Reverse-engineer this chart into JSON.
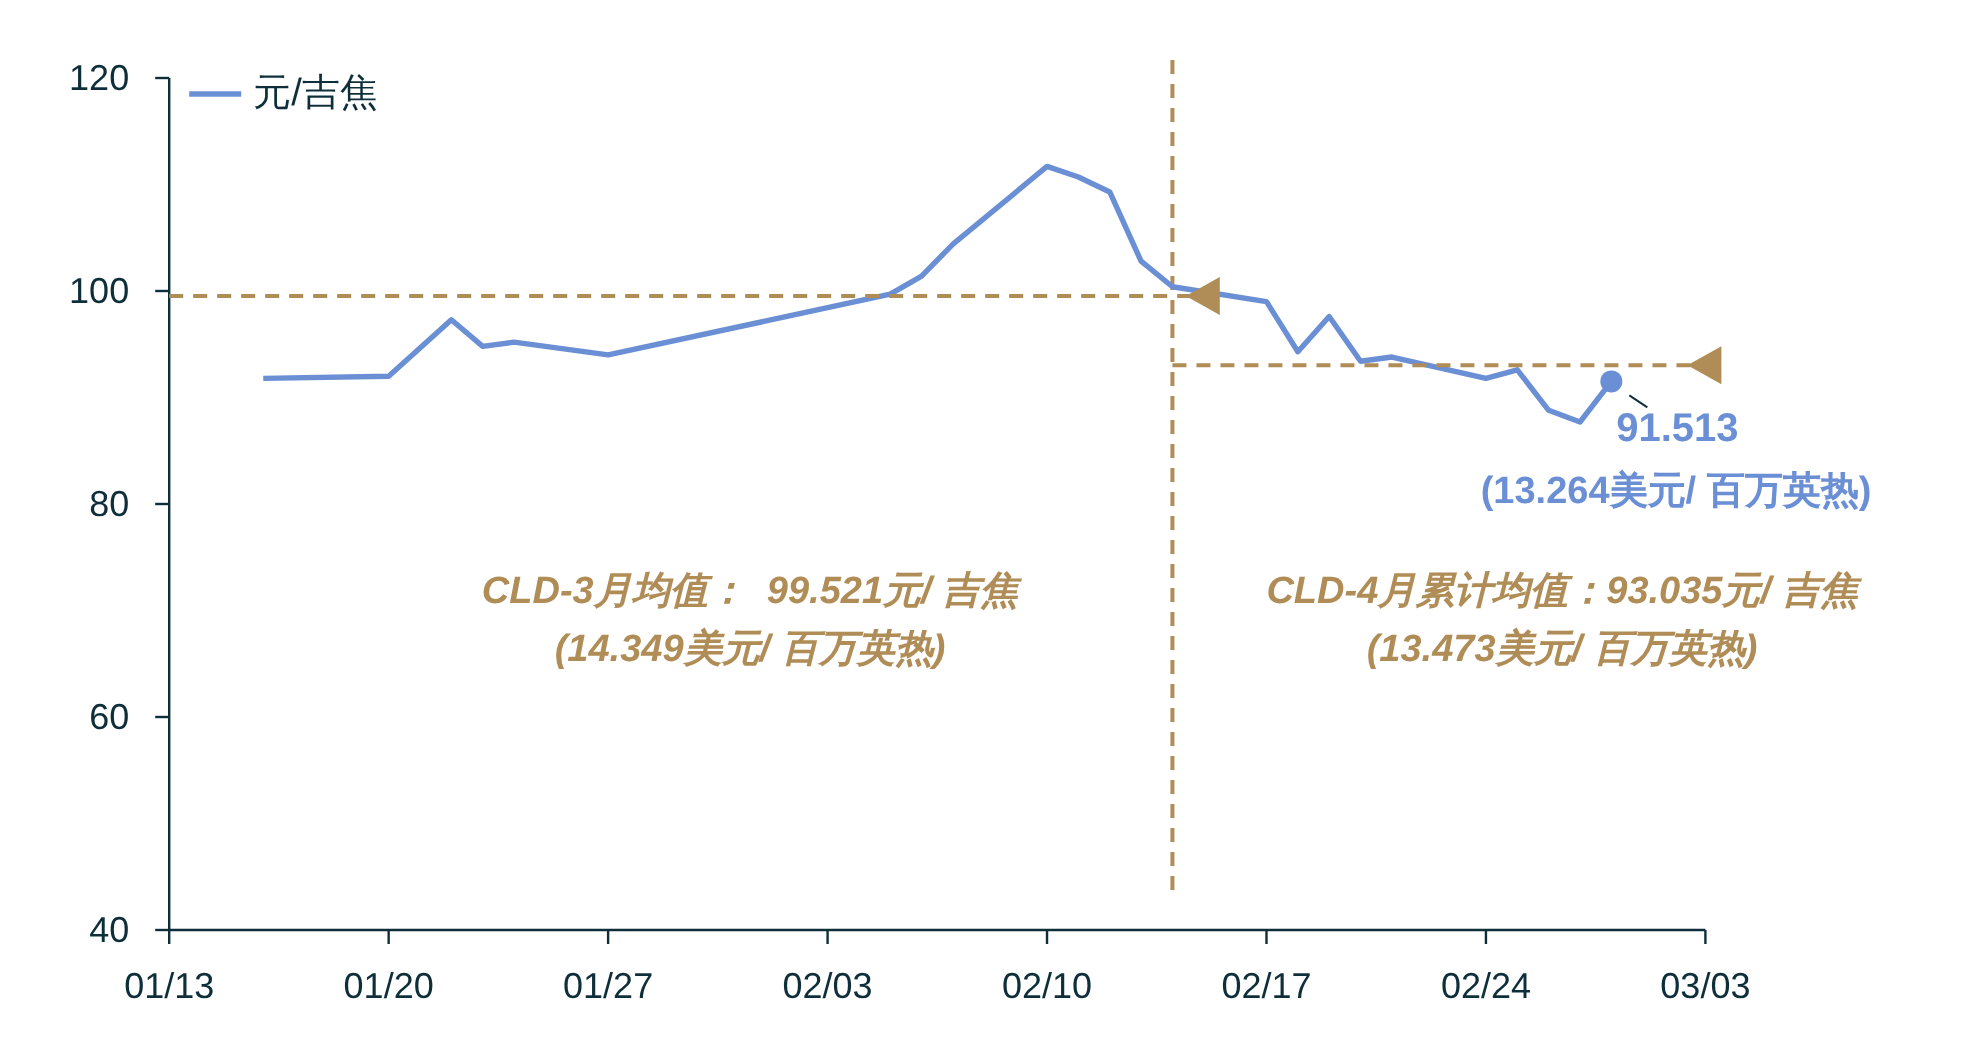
{
  "chart_data": {
    "type": "line",
    "legend": "top left",
    "xlim": [
      "--01-13",
      "--03-03"
    ],
    "xticks": [
      {
        "value": "--01-13",
        "label": "01/13"
      },
      {
        "value": "--01-20",
        "label": "01/20"
      },
      {
        "value": "--01-27",
        "label": "01/27"
      },
      {
        "value": "--02-03",
        "label": "02/03"
      },
      {
        "value": "--02-10",
        "label": "02/10"
      },
      {
        "value": "--02-17",
        "label": "02/17"
      },
      {
        "value": "--02-24",
        "label": "02/24"
      },
      {
        "value": "--03-03",
        "label": "03/03"
      }
    ],
    "ylim": [
      40,
      120
    ],
    "yticks": [
      40,
      60,
      80,
      100,
      120
    ],
    "series": [
      {
        "name": "元/吉焦",
        "color": "#6b8fd4",
        "x": [
          "--01-16",
          "--01-20",
          "--01-22",
          "--01-23",
          "--01-24",
          "--01-27",
          "--02-05",
          "--02-06",
          "--02-07",
          "--02-10",
          "--02-11",
          "--02-12",
          "--02-13",
          "--02-14",
          "--02-17",
          "--02-18",
          "--02-19",
          "--02-20",
          "--02-21",
          "--02-24",
          "--02-25",
          "--02-26",
          "--02-27",
          "--02-28"
        ],
        "values": [
          91.8,
          92.0,
          97.3,
          94.8,
          95.2,
          94.0,
          99.7,
          101.4,
          104.4,
          111.7,
          110.7,
          109.3,
          102.8,
          100.4,
          99.0,
          94.3,
          97.6,
          93.4,
          93.8,
          91.8,
          92.6,
          88.8,
          87.7,
          91.513
        ]
      },
      {
        "type": "line",
        "color": "#b08d57",
        "line_style": "dashed",
        "x": [
          "--01-13",
          "--02-15"
        ],
        "values": [
          99.521,
          99.521
        ]
      },
      {
        "type": "scatter",
        "color": "#b08d57",
        "marker": "triangle",
        "x": [
          "--02-15"
        ],
        "values": [
          99.521
        ]
      },
      {
        "type": "line",
        "color": "#b08d57",
        "line_style": "dashed",
        "x": [
          "--02-14",
          "--03-03"
        ],
        "values": [
          93.035,
          93.035
        ]
      },
      {
        "type": "scatter",
        "color": "#b08d57",
        "marker": "triangle",
        "x": [
          "--03-03"
        ],
        "values": [
          93.035
        ]
      },
      {
        "type": "scatter",
        "color": "#6b8fd4",
        "marker": "circle",
        "x": [
          "--02-28"
        ],
        "values": [
          91.513
        ]
      }
    ],
    "ref_lines": [
      {
        "axis": "x",
        "value": "--02-14",
        "color": "#b08d57",
        "line_style": "dashed"
      }
    ],
    "annotations": [
      {
        "text": "91.513",
        "x": "--02-28",
        "y": 91.513
      },
      "(13.264美元/ 百万英热)",
      "CLD-3月均值：  99.521元/ 吉焦",
      "(14.349美元/ 百万英热)",
      "CLD-4月累计均值：93.035元/ 吉焦",
      "(13.473美元/ 百万英热)"
    ]
  }
}
